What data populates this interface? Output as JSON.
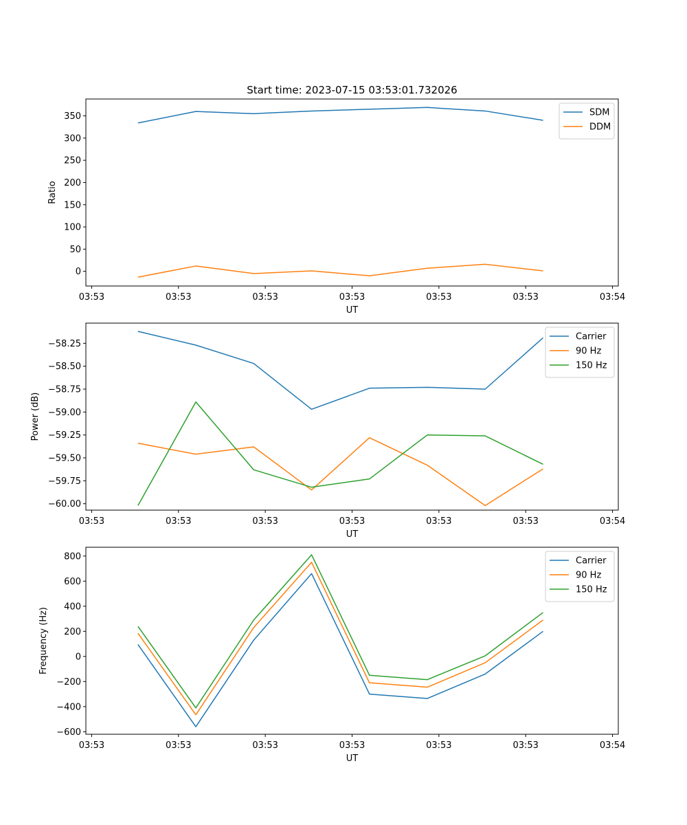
{
  "figure_title": "Start time: 2023-07-15 03:53:01.732026",
  "chart_data": [
    {
      "type": "line",
      "title": "Start time: 2023-07-15 03:53:01.732026",
      "xlabel": "UT",
      "ylabel": "Ratio",
      "x": [
        1,
        2,
        3,
        4,
        5,
        6,
        7,
        8
      ],
      "xlim": [
        0.1,
        9.3
      ],
      "x_ticks": [
        0.2,
        1.7,
        3.2,
        4.7,
        6.2,
        7.7,
        9.2
      ],
      "x_tick_labels": [
        "03:53",
        "03:53",
        "03:53",
        "03:53",
        "03:53",
        "03:53",
        "03:54"
      ],
      "ylim": [
        -33,
        388
      ],
      "y_ticks": [
        0,
        50,
        100,
        150,
        200,
        250,
        300,
        350
      ],
      "y_tick_labels": [
        "0",
        "50",
        "100",
        "150",
        "200",
        "250",
        "300",
        "350"
      ],
      "legend_position": "top-right",
      "series": [
        {
          "name": "SDM",
          "color": "#1f77b4",
          "values": [
            334,
            360,
            355,
            361,
            365,
            369,
            361,
            340
          ]
        },
        {
          "name": "DDM",
          "color": "#ff7f0e",
          "values": [
            -13,
            12,
            -5,
            1,
            -10,
            7,
            16,
            1
          ]
        }
      ]
    },
    {
      "type": "line",
      "title": "",
      "xlabel": "UT",
      "ylabel": "Power (dB)",
      "x": [
        1,
        2,
        3,
        4,
        5,
        6,
        7,
        8
      ],
      "xlim": [
        0.1,
        9.3
      ],
      "x_ticks": [
        0.2,
        1.7,
        3.2,
        4.7,
        6.2,
        7.7,
        9.2
      ],
      "x_tick_labels": [
        "03:53",
        "03:53",
        "03:53",
        "03:53",
        "03:53",
        "03:53",
        "03:54"
      ],
      "ylim": [
        -60.07,
        -58.03
      ],
      "y_ticks": [
        -60.0,
        -59.75,
        -59.5,
        -59.25,
        -59.0,
        -58.75,
        -58.5,
        -58.25
      ],
      "y_tick_labels": [
        "−60.00",
        "−59.75",
        "−59.50",
        "−59.25",
        "−59.00",
        "−58.75",
        "−58.50",
        "−58.25"
      ],
      "legend_position": "top-right",
      "series": [
        {
          "name": "Carrier",
          "color": "#1f77b4",
          "values": [
            -58.12,
            -58.27,
            -58.47,
            -58.97,
            -58.74,
            -58.73,
            -58.75,
            -58.19
          ]
        },
        {
          "name": "90 Hz",
          "color": "#ff7f0e",
          "values": [
            -59.34,
            -59.46,
            -59.38,
            -59.85,
            -59.28,
            -59.58,
            -60.02,
            -59.62
          ]
        },
        {
          "name": "150 Hz",
          "color": "#2ca02c",
          "values": [
            -60.02,
            -58.89,
            -59.63,
            -59.82,
            -59.73,
            -59.25,
            -59.26,
            -59.57
          ]
        }
      ]
    },
    {
      "type": "line",
      "title": "",
      "xlabel": "UT",
      "ylabel": "Frequency (Hz)",
      "x": [
        1,
        2,
        3,
        4,
        5,
        6,
        7,
        8
      ],
      "xlim": [
        0.1,
        9.3
      ],
      "x_ticks": [
        0.2,
        1.7,
        3.2,
        4.7,
        6.2,
        7.7,
        9.2
      ],
      "x_tick_labels": [
        "03:53",
        "03:53",
        "03:53",
        "03:53",
        "03:53",
        "03:53",
        "03:54"
      ],
      "ylim": [
        -620,
        870
      ],
      "y_ticks": [
        -600,
        -400,
        -200,
        0,
        200,
        400,
        600,
        800
      ],
      "y_tick_labels": [
        "−600",
        "−400",
        "−200",
        "0",
        "200",
        "400",
        "600",
        "800"
      ],
      "legend_position": "top-right",
      "series": [
        {
          "name": "Carrier",
          "color": "#1f77b4",
          "values": [
            95,
            -560,
            130,
            660,
            -300,
            -335,
            -140,
            200
          ]
        },
        {
          "name": "90 Hz",
          "color": "#ff7f0e",
          "values": [
            185,
            -465,
            230,
            750,
            -210,
            -245,
            -50,
            290
          ]
        },
        {
          "name": "150 Hz",
          "color": "#2ca02c",
          "values": [
            240,
            -410,
            290,
            810,
            -150,
            -185,
            5,
            350
          ]
        }
      ]
    }
  ]
}
